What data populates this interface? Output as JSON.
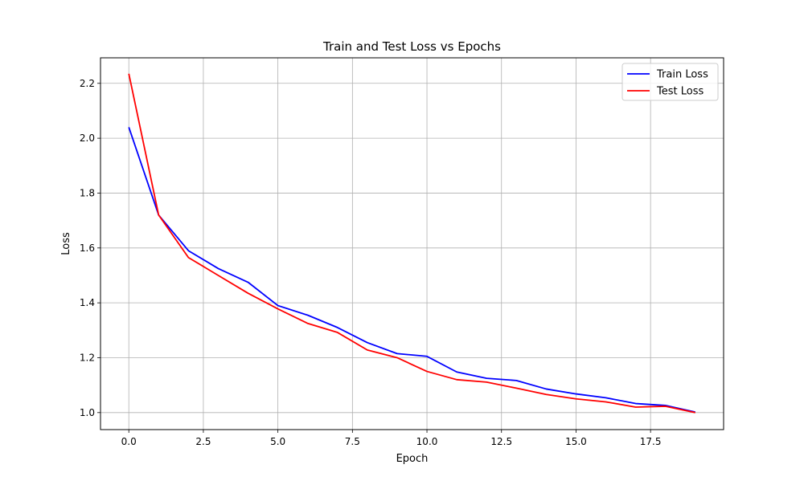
{
  "chart_data": {
    "type": "line",
    "title": "Train and Test Loss vs Epochs",
    "xlabel": "Epoch",
    "ylabel": "Loss",
    "xlim": [
      -0.95,
      19.95
    ],
    "ylim": [
      0.938,
      2.293
    ],
    "xticks": [
      0,
      2.5,
      5,
      7.5,
      10,
      12.5,
      15,
      17.5
    ],
    "xtick_labels": [
      "0.0",
      "2.5",
      "5.0",
      "7.5",
      "10.0",
      "12.5",
      "15.0",
      "17.5"
    ],
    "yticks": [
      1.0,
      1.2,
      1.4,
      1.6,
      1.8,
      2.0,
      2.2
    ],
    "ytick_labels": [
      "1.0",
      "1.2",
      "1.4",
      "1.6",
      "1.8",
      "2.0",
      "2.2"
    ],
    "grid": true,
    "legend_position": "top-right",
    "x": [
      0,
      1,
      2,
      3,
      4,
      5,
      6,
      7,
      8,
      9,
      10,
      11,
      12,
      13,
      14,
      15,
      16,
      17,
      18,
      19
    ],
    "series": [
      {
        "name": "Train Loss",
        "color": "#0000ff",
        "values": [
          2.04,
          1.72,
          1.59,
          1.525,
          1.475,
          1.39,
          1.355,
          1.31,
          1.255,
          1.215,
          1.205,
          1.148,
          1.125,
          1.117,
          1.086,
          1.068,
          1.054,
          1.033,
          1.026,
          1.002
        ]
      },
      {
        "name": "Test Loss",
        "color": "#ff0000",
        "values": [
          2.235,
          1.72,
          1.565,
          1.5,
          1.435,
          1.378,
          1.325,
          1.292,
          1.228,
          1.2,
          1.15,
          1.12,
          1.111,
          1.089,
          1.066,
          1.05,
          1.039,
          1.02,
          1.023,
          1.0
        ]
      }
    ]
  }
}
